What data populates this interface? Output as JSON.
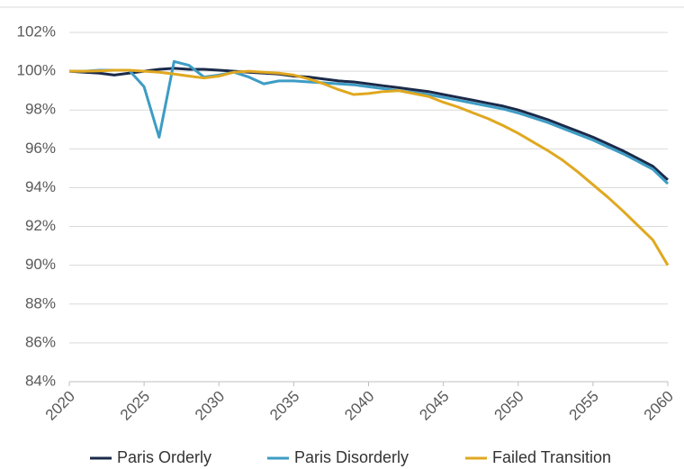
{
  "chart_data": {
    "type": "line",
    "x": [
      2020,
      2021,
      2022,
      2023,
      2024,
      2025,
      2026,
      2027,
      2028,
      2029,
      2030,
      2031,
      2032,
      2033,
      2034,
      2035,
      2036,
      2037,
      2038,
      2039,
      2040,
      2041,
      2042,
      2043,
      2044,
      2045,
      2046,
      2047,
      2048,
      2049,
      2050,
      2051,
      2052,
      2053,
      2054,
      2055,
      2056,
      2057,
      2058,
      2059,
      2060
    ],
    "xlim": [
      2020,
      2060
    ],
    "xticks": [
      2020,
      2025,
      2030,
      2035,
      2040,
      2045,
      2050,
      2055,
      2060
    ],
    "ylim": [
      84,
      102
    ],
    "yticks": [
      {
        "value": 84,
        "label": "84%"
      },
      {
        "value": 86,
        "label": "86%"
      },
      {
        "value": 88,
        "label": "88%"
      },
      {
        "value": 90,
        "label": "90%"
      },
      {
        "value": 92,
        "label": "92%"
      },
      {
        "value": 94,
        "label": "94%"
      },
      {
        "value": 96,
        "label": "96%"
      },
      {
        "value": 98,
        "label": "98%"
      },
      {
        "value": 100,
        "label": "100%"
      },
      {
        "value": 102,
        "label": "102%"
      }
    ],
    "grid": true,
    "legend": "bottom",
    "series": [
      {
        "name": "Paris Orderly",
        "color": "#1b2a4a",
        "values": [
          100,
          99.95,
          99.9,
          99.8,
          99.9,
          100.0,
          100.1,
          100.15,
          100.1,
          100.1,
          100.05,
          100.0,
          99.95,
          99.9,
          99.85,
          99.75,
          99.7,
          99.6,
          99.5,
          99.45,
          99.35,
          99.25,
          99.15,
          99.05,
          98.95,
          98.8,
          98.65,
          98.5,
          98.35,
          98.2,
          98.0,
          97.75,
          97.5,
          97.2,
          96.9,
          96.6,
          96.25,
          95.9,
          95.5,
          95.1,
          94.4
        ]
      },
      {
        "name": "Paris Disorderly",
        "color": "#3d9cc4",
        "values": [
          100,
          100,
          100.05,
          100.05,
          100.05,
          99.2,
          96.6,
          100.5,
          100.3,
          99.7,
          99.8,
          99.95,
          99.7,
          99.35,
          99.5,
          99.5,
          99.45,
          99.4,
          99.35,
          99.3,
          99.2,
          99.1,
          99.0,
          98.9,
          98.8,
          98.65,
          98.5,
          98.35,
          98.2,
          98.05,
          97.85,
          97.6,
          97.35,
          97.05,
          96.75,
          96.45,
          96.1,
          95.75,
          95.35,
          94.95,
          94.2
        ]
      },
      {
        "name": "Failed Transition",
        "color": "#e0a820",
        "values": [
          100,
          100,
          100.02,
          100.05,
          100.05,
          100.0,
          99.95,
          99.85,
          99.75,
          99.65,
          99.75,
          99.95,
          100.0,
          99.95,
          99.9,
          99.8,
          99.6,
          99.35,
          99.05,
          98.8,
          98.85,
          98.95,
          99.0,
          98.85,
          98.7,
          98.4,
          98.15,
          97.85,
          97.55,
          97.2,
          96.8,
          96.35,
          95.9,
          95.4,
          94.8,
          94.15,
          93.5,
          92.8,
          92.05,
          91.3,
          90.0
        ]
      }
    ]
  }
}
